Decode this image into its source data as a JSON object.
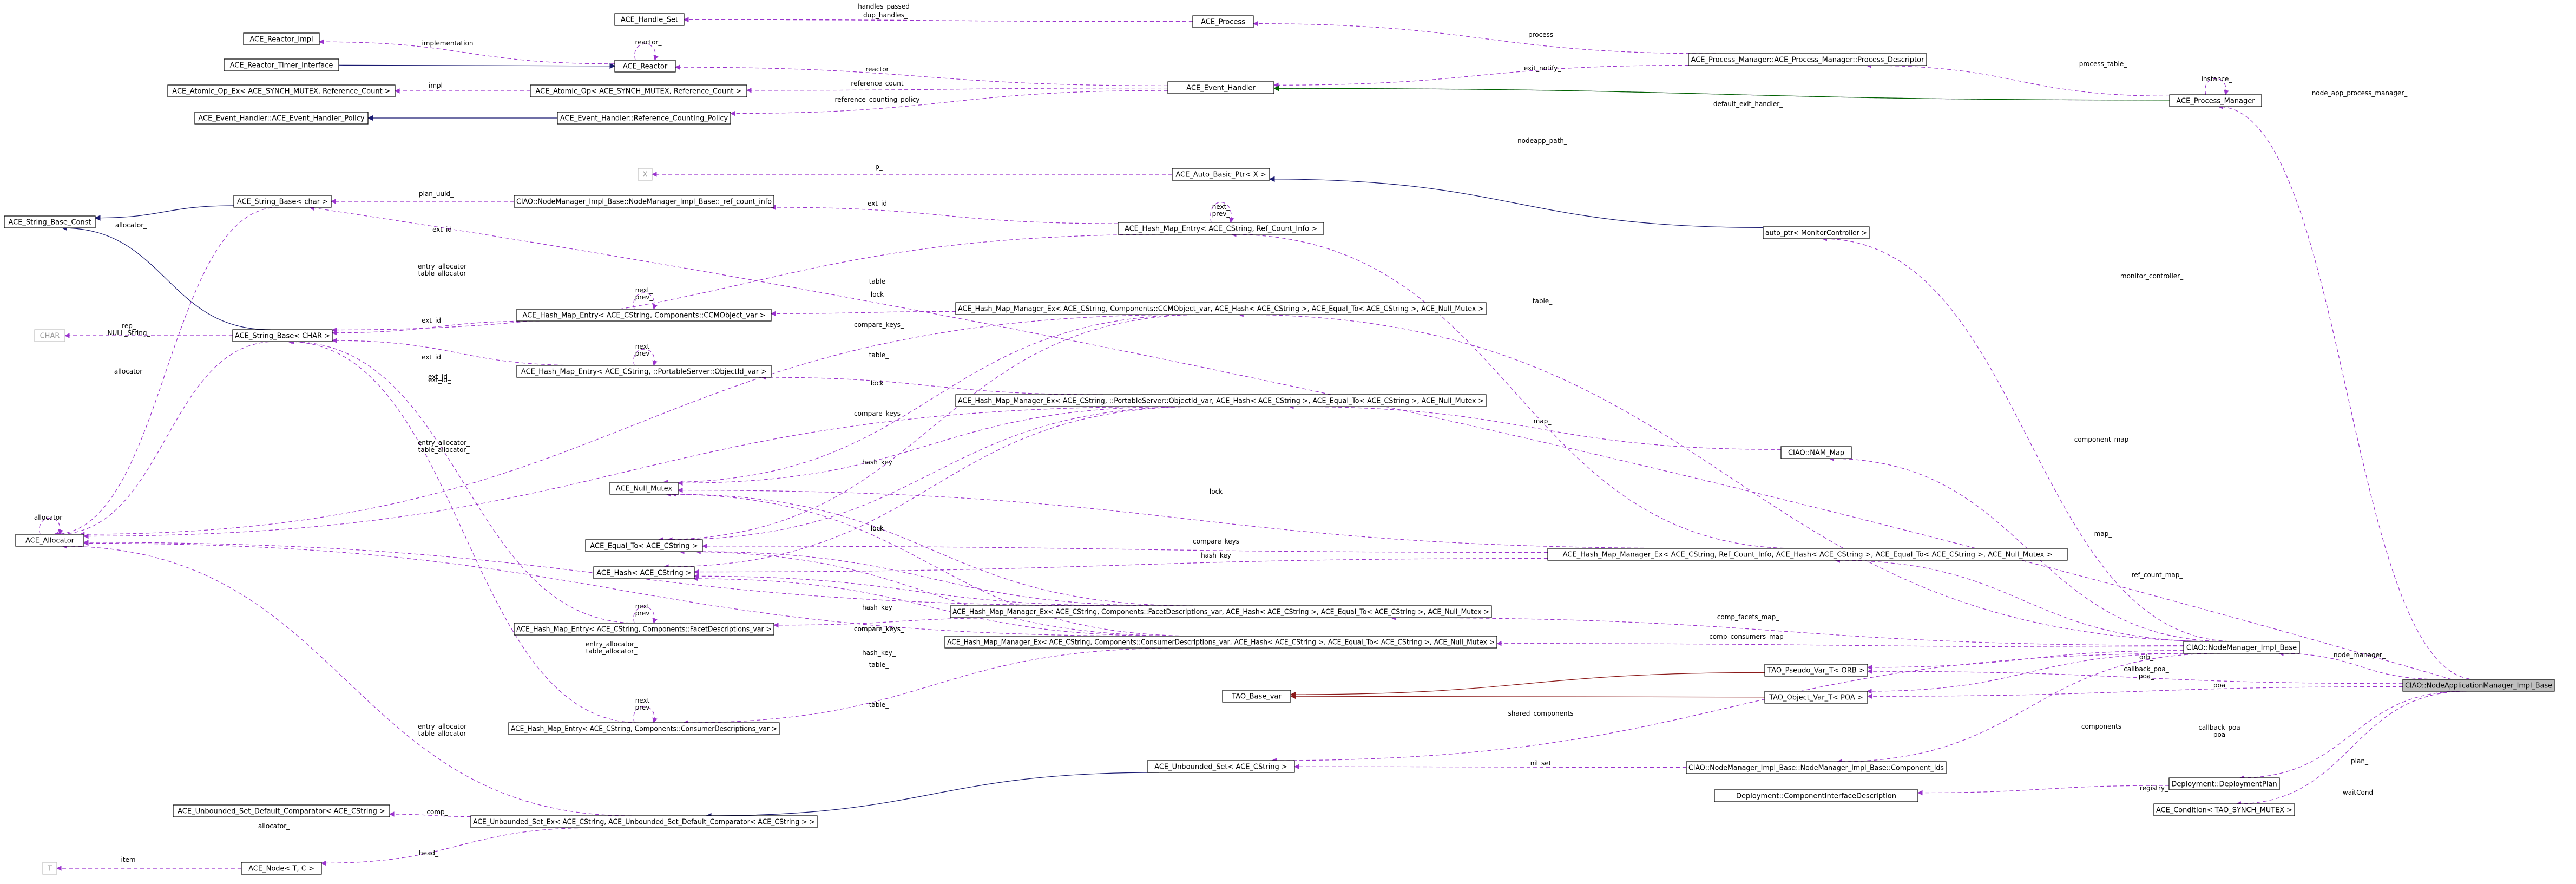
{
  "colors": {
    "usage_edge": "#9a32cd",
    "inherit_edge": "#191970",
    "private_inherit_edge": "#8b1a1a",
    "protected_inherit_edge": "#006400",
    "focus_fill": "#bfbfbf"
  },
  "nodes": {
    "focus": "CIAO::NodeApplicationManager_Impl_Base",
    "handle_set": "ACE_Handle_Set",
    "process": "ACE_Process",
    "reactor_impl": "ACE_Reactor_Impl",
    "reactor_timer_interface": "ACE_Reactor_Timer_Interface",
    "reactor": "ACE_Reactor",
    "atomic_op_ex": "ACE_Atomic_Op_Ex< ACE_SYNCH_MUTEX, Reference_Count >",
    "atomic_op": "ACE_Atomic_Op< ACE_SYNCH_MUTEX, Reference_Count >",
    "event_handler_policy": "ACE_Event_Handler::ACE_Event_Handler_Policy",
    "ref_counting_policy": "ACE_Event_Handler::Reference_Counting_Policy",
    "event_handler": "ACE_Event_Handler",
    "process_descriptor": "ACE_Process_Manager::ACE_Process_Manager::Process_Descriptor",
    "process_manager": "ACE_Process_Manager",
    "x": "X",
    "auto_basic_ptr": "ACE_Auto_Basic_Ptr< X >",
    "string_base_const": "ACE_String_Base_Const",
    "string_base_char": "ACE_String_Base< char >",
    "ref_count_info": "CIAO::NodeManager_Impl_Base::NodeManager_Impl_Base::_ref_count_info",
    "hash_entry_refcount": "ACE_Hash_Map_Entry< ACE_CString, Ref_Count_Info >",
    "auto_ptr_monitor": "auto_ptr< MonitorController >",
    "char_node": "CHAR",
    "string_base_CHAR": "ACE_String_Base< CHAR >",
    "hash_entry_ccmobject": "ACE_Hash_Map_Entry< ACE_CString, Components::CCMObject_var >",
    "hash_mgr_ccmobject": "ACE_Hash_Map_Manager_Ex< ACE_CString, Components::CCMObject_var, ACE_Hash< ACE_CString >, ACE_Equal_To< ACE_CString >, ACE_Null_Mutex >",
    "hash_entry_objectid": "ACE_Hash_Map_Entry< ACE_CString, ::PortableServer::ObjectId_var >",
    "hash_mgr_objectid": "ACE_Hash_Map_Manager_Ex< ACE_CString, ::PortableServer::ObjectId_var, ACE_Hash< ACE_CString >, ACE_Equal_To< ACE_CString >, ACE_Null_Mutex >",
    "nam_map": "CIAO::NAM_Map",
    "allocator": "ACE_Allocator",
    "null_mutex": "ACE_Null_Mutex",
    "equal_to": "ACE_Equal_To< ACE_CString >",
    "hash": "ACE_Hash< ACE_CString >",
    "hash_mgr_refcount": "ACE_Hash_Map_Manager_Ex< ACE_CString, Ref_Count_Info, ACE_Hash< ACE_CString >, ACE_Equal_To< ACE_CString >, ACE_Null_Mutex >",
    "hash_mgr_facet": "ACE_Hash_Map_Manager_Ex< ACE_CString, Components::FacetDescriptions_var, ACE_Hash< ACE_CString >, ACE_Equal_To< ACE_CString >, ACE_Null_Mutex >",
    "hash_entry_facet": "ACE_Hash_Map_Entry< ACE_CString, Components::FacetDescriptions_var >",
    "hash_mgr_consumer": "ACE_Hash_Map_Manager_Ex< ACE_CString, Components::ConsumerDescriptions_var, ACE_Hash< ACE_CString >, ACE_Equal_To< ACE_CString >, ACE_Null_Mutex >",
    "nodemanager_impl_base": "CIAO::NodeManager_Impl_Base",
    "pseudo_var_orb": "TAO_Pseudo_Var_T< ORB >",
    "base_var": "TAO_Base_var",
    "object_var_poa": "TAO_Object_Var_T< POA >",
    "hash_entry_consumer": "ACE_Hash_Map_Entry< ACE_CString, Components::ConsumerDescriptions_var >",
    "unbounded_set": "ACE_Unbounded_Set< ACE_CString >",
    "component_ids": "CIAO::NodeManager_Impl_Base::NodeManager_Impl_Base::Component_Ids",
    "deployment_plan": "Deployment::DeploymentPlan",
    "component_interface_desc": "Deployment::ComponentInterfaceDescription",
    "condition": "ACE_Condition< TAO_SYNCH_MUTEX >",
    "default_comparator": "ACE_Unbounded_Set_Default_Comparator< ACE_CString >",
    "unbounded_set_ex": "ACE_Unbounded_Set_Ex< ACE_CString, ACE_Unbounded_Set_Default_Comparator< ACE_CString > >",
    "t_node": "T",
    "ace_node": "ACE_Node< T, C >"
  },
  "edge_labels": {
    "handles_passed": "handles_passed_",
    "dup_handles": "dup_handles_",
    "implementation": "implementation_",
    "reactor_self": "reactor_",
    "reactor": "reactor_",
    "impl": "impl_",
    "reference_count": "reference_count_",
    "reference_counting_policy": "reference_counting_policy_",
    "process": "process_",
    "exit_notify": "exit_notify_",
    "process_table": "process_table_",
    "instance": "instance_",
    "default_exit_handler": "default_exit_handler_",
    "node_app_process_manager": "node_app_process_manager_",
    "nodeapp_path": "nodeapp_path_",
    "p": "p_",
    "plan_uuid": "plan_uuid_",
    "ext_id": "ext_id_",
    "next_prev": "next_\nprev_",
    "entry_allocator_table_allocator": "entry_allocator_\ntable_allocator_",
    "allocator": "allocator_",
    "rep": "rep_\nNULL_String_",
    "table": "table_",
    "lock": "lock_",
    "compare_keys": "compare_keys_",
    "hash_key": "hash_key_",
    "monitor_controller": "monitor_controller_",
    "component_map": "component_map_",
    "map": "map_",
    "ref_count_map": "ref_count_map_",
    "comp_facets_map": "comp_facets_map_",
    "comp_consumers_map": "comp_consumers_map_",
    "node_manager": "node_manager_",
    "orb": "orb_",
    "poa": "poa_",
    "callback_poa": "callback_poa_\npoa_",
    "shared_components": "shared_components_",
    "components": "components_",
    "nil_set": "nil_set_",
    "registry": "registry_",
    "plan": "plan_",
    "waitCond": "waitCond_",
    "comp": "comp_",
    "head": "head_",
    "item": "item_"
  }
}
